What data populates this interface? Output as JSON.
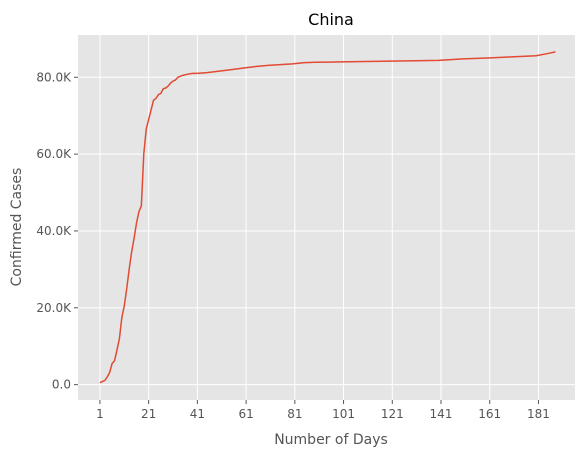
{
  "chart_data": {
    "type": "line",
    "title": "China",
    "xlabel": "Number of Days",
    "ylabel": "Confirmed Cases",
    "xlim": [
      -8,
      196
    ],
    "ylim": [
      -4000,
      91000
    ],
    "x_ticks": [
      1,
      21,
      41,
      61,
      81,
      101,
      121,
      141,
      161,
      181
    ],
    "y_ticks": [
      0,
      20000,
      40000,
      60000,
      80000
    ],
    "y_tick_labels": [
      "0.0",
      "20.0K",
      "40.0K",
      "60.0K",
      "80.0K"
    ],
    "grid": true,
    "background": "#E5E5E5",
    "line_color": "#E24A33",
    "series": [
      {
        "x": [
          1,
          2,
          3,
          4,
          5,
          6,
          7,
          8,
          9,
          10,
          11,
          12,
          13,
          14,
          15,
          16,
          17,
          18,
          19,
          20,
          21,
          22,
          23,
          24,
          25,
          26,
          27,
          28,
          29,
          30,
          31,
          32,
          33,
          35,
          37,
          39,
          41,
          43,
          45,
          50,
          55,
          60,
          65,
          70,
          75,
          80,
          85,
          87,
          89,
          95,
          100,
          110,
          120,
          130,
          140,
          145,
          150,
          160,
          170,
          180,
          185,
          188
        ],
        "y": [
          500,
          800,
          1100,
          2000,
          3200,
          5500,
          6200,
          9000,
          12000,
          17500,
          20500,
          25000,
          30000,
          34500,
          38000,
          42000,
          45000,
          46500,
          60000,
          66500,
          69000,
          71500,
          74000,
          74500,
          75500,
          75800,
          77000,
          77200,
          77700,
          78500,
          79000,
          79300,
          80000,
          80500,
          80800,
          81000,
          81000,
          81100,
          81200,
          81600,
          82000,
          82400,
          82800,
          83100,
          83300,
          83500,
          83800,
          83850,
          83900,
          83950,
          84000,
          84100,
          84200,
          84300,
          84400,
          84600,
          84800,
          85000,
          85300,
          85600,
          86200,
          86600
        ]
      }
    ]
  }
}
